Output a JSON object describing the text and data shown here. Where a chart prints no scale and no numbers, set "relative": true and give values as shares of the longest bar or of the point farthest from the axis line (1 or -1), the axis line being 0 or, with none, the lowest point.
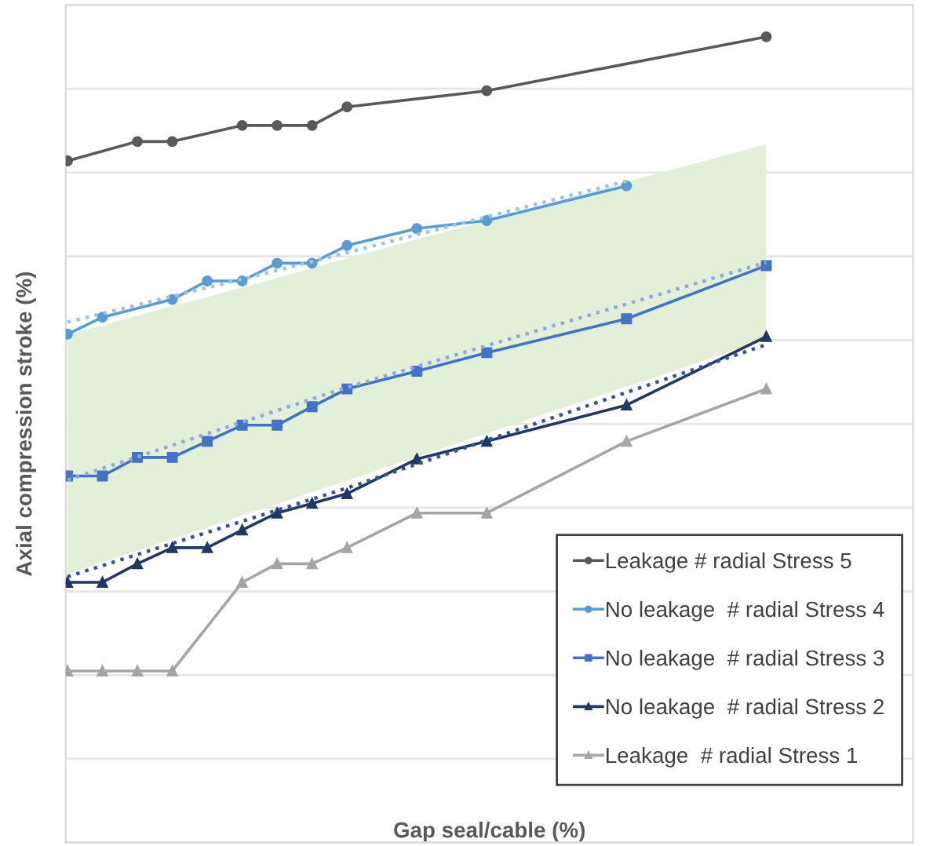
{
  "chart_data": {
    "type": "line",
    "relative": true,
    "xlabel": "Gap seal/cable (%)",
    "ylabel": "Axial compression stroke (%)",
    "categories": [
      null,
      null,
      null,
      null,
      null,
      null,
      null,
      null,
      null,
      null,
      null,
      null,
      null,
      null,
      null,
      null,
      null,
      null,
      null,
      null,
      null
    ],
    "grid": "y",
    "legend": "bottom right",
    "line_style": "solid",
    "series": [
      {
        "name": "Leakage # radial Stress 5",
        "color": "#595959",
        "marker": "circle",
        "values": [
          0.846,
          null,
          0.87,
          0.87,
          null,
          0.89,
          0.89,
          0.89,
          0.913,
          null,
          null,
          null,
          0.933,
          null,
          null,
          null,
          null,
          null,
          null,
          null,
          1
        ]
      },
      {
        "name": "No leakage  # radial Stress 4",
        "color": "#5b9bd5",
        "marker": "circle",
        "values": [
          0.631,
          0.652,
          null,
          0.674,
          0.697,
          0.697,
          0.719,
          0.719,
          0.741,
          null,
          0.762,
          null,
          0.772,
          null,
          null,
          null,
          0.815,
          null,
          null,
          null,
          null
        ]
      },
      {
        "name": "No leakage  # radial Stress 3",
        "color": "#4472c4",
        "marker": "square",
        "values": [
          0.455,
          0.455,
          0.478,
          0.478,
          0.498,
          0.518,
          0.518,
          0.541,
          0.563,
          null,
          0.585,
          null,
          0.608,
          null,
          null,
          null,
          0.65,
          null,
          null,
          null,
          0.716
        ],
        "upper": [
          0.63,
          0.642,
          0.654,
          0.666,
          0.677,
          0.689,
          0.701,
          0.713,
          0.725,
          0.737,
          0.749,
          0.76,
          0.772,
          0.784,
          0.796,
          0.808,
          0.82,
          0.832,
          0.843,
          0.855,
          0.867
        ],
        "lower": [
          0.333,
          0.348,
          0.362,
          0.377,
          0.391,
          0.406,
          0.42,
          0.435,
          0.449,
          0.464,
          0.479,
          0.493,
          0.508,
          0.522,
          0.537,
          0.551,
          0.566,
          0.58,
          0.595,
          0.61,
          0.624
        ]
      },
      {
        "name": "No leakage  # radial Stress 2",
        "color": "#203864",
        "marker": "triangle",
        "values": [
          0.323,
          0.323,
          0.346,
          0.366,
          0.366,
          0.388,
          0.409,
          0.421,
          0.433,
          null,
          0.476,
          null,
          0.498,
          null,
          null,
          null,
          0.543,
          null,
          null,
          null,
          0.628
        ]
      },
      {
        "name": "Leakage  # radial Stress 1",
        "color": "#a5a5a5",
        "marker": "triangle",
        "values": [
          0.213,
          0.213,
          0.213,
          0.213,
          null,
          0.323,
          0.346,
          0.346,
          0.366,
          null,
          0.409,
          null,
          0.409,
          null,
          null,
          null,
          0.498,
          null,
          null,
          null,
          0.563
        ]
      },
      {
        "color": "#9dc3e6",
        "line_style": "dotted",
        "marker": "none",
        "values": [
          0.646,
          null,
          null,
          null,
          null,
          null,
          0.71,
          null,
          null,
          null,
          null,
          null,
          null,
          null,
          null,
          null,
          0.821,
          null,
          null,
          null,
          null
        ]
      },
      {
        "color": "#8faadc",
        "line_style": "dotted",
        "marker": "none",
        "values": [
          0.45,
          null,
          null,
          null,
          null,
          null,
          null,
          null,
          0.565,
          null,
          null,
          null,
          null,
          null,
          null,
          null,
          null,
          null,
          null,
          null,
          0.72
        ]
      },
      {
        "color": "#2f5597",
        "line_style": "dotted",
        "marker": "none",
        "values": [
          0.33,
          null,
          null,
          null,
          null,
          null,
          null,
          null,
          0.44,
          null,
          null,
          null,
          null,
          null,
          null,
          null,
          null,
          null,
          null,
          null,
          0.618
        ]
      }
    ]
  }
}
